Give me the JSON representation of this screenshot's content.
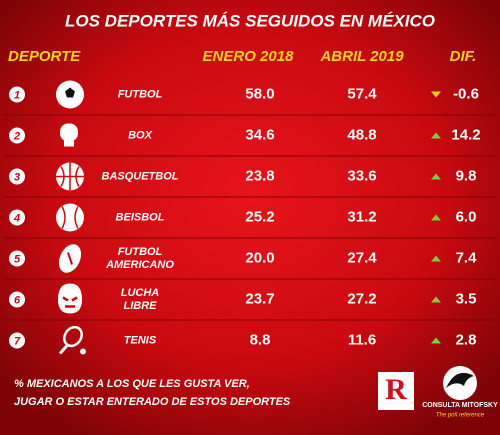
{
  "header": {
    "title": "LOS DEPORTES MÁS SEGUIDOS EN MÉXICO"
  },
  "table": {
    "columns": [
      "DEPORTE",
      "ENERO 2018",
      "ABRIL 2019",
      "DIF."
    ],
    "rows": [
      {
        "rank": "1",
        "name": [
          "FUTBOL"
        ],
        "jan": "58.0",
        "apr": "57.4",
        "diff": "-0.6"
      },
      {
        "rank": "2",
        "name": [
          "BOX"
        ],
        "jan": "34.6",
        "apr": "48.8",
        "diff": "14.2"
      },
      {
        "rank": "3",
        "name": [
          "BASQUETBOL"
        ],
        "jan": "23.8",
        "apr": "33.6",
        "diff": "9.8"
      },
      {
        "rank": "4",
        "name": [
          "BEISBOL"
        ],
        "jan": "25.2",
        "apr": "31.2",
        "diff": "6.0"
      },
      {
        "rank": "5",
        "name": [
          "FUTBOL",
          "AMERICANO"
        ],
        "jan": "20.0",
        "apr": "27.4",
        "diff": "7.4"
      },
      {
        "rank": "6",
        "name": [
          "LUCHA",
          "LIBRE"
        ],
        "jan": "23.7",
        "apr": "27.2",
        "diff": "3.5"
      },
      {
        "rank": "7",
        "name": [
          "TENIS"
        ],
        "jan": "8.8",
        "apr": "11.6",
        "diff": "2.8"
      }
    ]
  },
  "footer": {
    "note": [
      "% MEXICANOS A LOS QUE LES GUSTA VER,",
      "JUGAR O ESTAR ENTERADO DE ESTOS DEPORTES"
    ],
    "logo_r": "R",
    "logo_mitofsky": "CONSULTA MITOFSKY",
    "logo_tagline": "The poll reference"
  }
}
